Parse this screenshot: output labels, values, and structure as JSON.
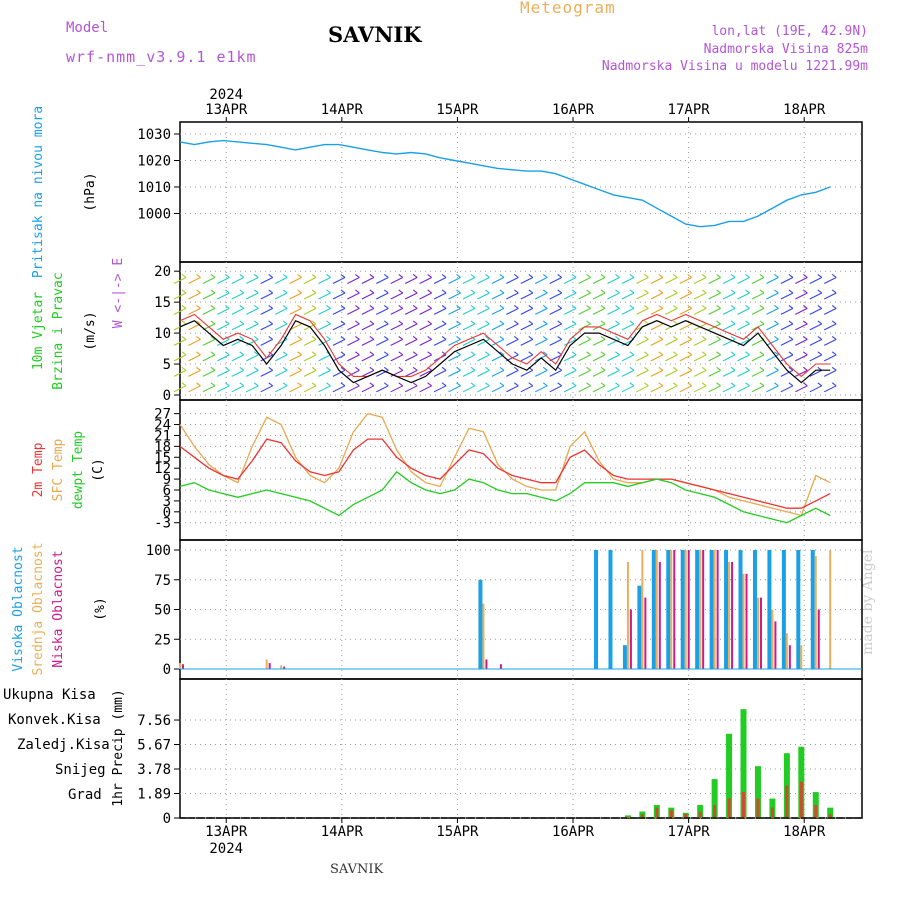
{
  "header": {
    "model_label": "Model",
    "model_name": "wrf-nmm_v3.9.1 e1km",
    "title": "Meteogram",
    "station": "SAVNIK",
    "lonlat": "lon,lat (19E, 42.9N)",
    "elevation": "Nadmorska Visina 825m",
    "model_elevation": "Nadmorska Visina u modelu 1221.99m",
    "footer_station": "SAVNIK",
    "credit": "made by Angel"
  },
  "time_axis": {
    "year": "2024",
    "labels": [
      "13APR",
      "14APR",
      "15APR",
      "16APR",
      "17APR",
      "18APR"
    ]
  },
  "colors": {
    "pressure": "#1aa0e6",
    "temp2m": "#ee3333",
    "sfc": "#e8a850",
    "dewpt": "#22cc22",
    "high": "#1aa0e6",
    "mid": "#e8b05a",
    "low": "#cc1a8c",
    "total": "#22cc22",
    "conv": "#ee3333",
    "frz": "#ff7733",
    "snow": "#3333dd",
    "hail": "#22cccc",
    "purple": "#b455d6"
  },
  "chart_data": [
    {
      "type": "line",
      "panel": "pressure",
      "ylabel_main": "Pritisak na nivou mora",
      "ylabel_unit": "(hPa)",
      "yticks": [
        "1030",
        "1020",
        "1010",
        "1000"
      ],
      "ylim": [
        993,
        1030
      ],
      "x_start_day": 12.6,
      "x_step_hours": 3,
      "series": [
        {
          "name": "pressure",
          "values": [
            1027,
            1026,
            1027,
            1027.5,
            1027,
            1026.5,
            1026,
            1025,
            1024,
            1025,
            1026,
            1026,
            1025,
            1024,
            1023,
            1022.5,
            1023,
            1022.5,
            1021,
            1020,
            1019,
            1018,
            1017,
            1016.5,
            1016,
            1016,
            1015,
            1013,
            1011,
            1009,
            1007,
            1006,
            1005,
            1002,
            999,
            996,
            995,
            995.5,
            997,
            997,
            999,
            1002,
            1005,
            1007,
            1008,
            1010
          ]
        }
      ]
    },
    {
      "type": "line",
      "panel": "wind",
      "ylabel_main": "10m Vjetar",
      "ylabel_sub": "Brzina i Pravac",
      "ylabel_unit": "(m/s)",
      "compass": "W <-|-> E",
      "yticks": [
        "20",
        "15",
        "10",
        "5",
        "0"
      ],
      "ylim": [
        0,
        21
      ],
      "x_start_day": 12.6,
      "x_step_hours": 3,
      "series": [
        {
          "name": "speed",
          "values": [
            11,
            12,
            10,
            8,
            9,
            8,
            5,
            8,
            12,
            11,
            8,
            4,
            2,
            3,
            4,
            3,
            2,
            3,
            5,
            7,
            8,
            9,
            7,
            5,
            4,
            6,
            4,
            8,
            10,
            10,
            9,
            8,
            11,
            12,
            11,
            12,
            11,
            10,
            9,
            8,
            10,
            7,
            4,
            2,
            4,
            4
          ]
        },
        {
          "name": "gust",
          "values": [
            12,
            13,
            11,
            9,
            10,
            9,
            6,
            9,
            13,
            12,
            9,
            5,
            3,
            3,
            4,
            3,
            3,
            4,
            6,
            8,
            9,
            10,
            8,
            6,
            5,
            7,
            5,
            9,
            11,
            11,
            10,
            9,
            12,
            13,
            12,
            13,
            12,
            11,
            10,
            9,
            11,
            8,
            5,
            3,
            5,
            5
          ]
        }
      ]
    },
    {
      "type": "line",
      "panel": "temperature",
      "ylabel_main": "2m Temp",
      "ylabel_sub": "SFC Temp",
      "ylabel_sub2": "dewpt Temp",
      "ylabel_unit": "(C)",
      "yticks": [
        "27",
        "24",
        "21",
        "18",
        "15",
        "12",
        "9",
        "6",
        "3",
        "0",
        "-3"
      ],
      "ylim": [
        -5,
        28
      ],
      "x_start_day": 12.6,
      "x_step_hours": 3,
      "series": [
        {
          "name": "2m",
          "values": [
            18,
            15,
            12,
            10,
            9,
            14,
            20,
            19,
            14,
            11,
            10,
            11,
            17,
            20,
            20,
            15,
            12,
            10,
            9,
            13,
            17,
            16,
            12,
            10,
            9,
            8,
            8,
            15,
            17,
            13,
            10,
            9,
            9,
            9,
            9,
            8,
            7,
            6,
            5,
            4,
            3,
            2,
            1,
            1,
            3,
            5
          ]
        },
        {
          "name": "sfc",
          "values": [
            24,
            18,
            13,
            10,
            8,
            18,
            26,
            24,
            15,
            10,
            8,
            12,
            22,
            27,
            26,
            17,
            11,
            8,
            7,
            15,
            23,
            22,
            13,
            9,
            7,
            6,
            6,
            18,
            22,
            14,
            9,
            8,
            8,
            9,
            9,
            8,
            7,
            6,
            4,
            3,
            2,
            1,
            0,
            -1,
            10,
            8
          ]
        },
        {
          "name": "dewpt",
          "values": [
            7,
            8,
            6,
            5,
            4,
            5,
            6,
            5,
            4,
            3,
            1,
            -1,
            2,
            4,
            6,
            11,
            8,
            6,
            5,
            6,
            9,
            8,
            6,
            5,
            5,
            4,
            3,
            5,
            8,
            8,
            8,
            7,
            8,
            9,
            8,
            6,
            5,
            4,
            2,
            0,
            -1,
            -2,
            -3,
            -1,
            1,
            -1
          ]
        }
      ]
    },
    {
      "type": "bar",
      "panel": "clouds",
      "ylabel_main": "Visoka Oblacnost",
      "ylabel_sub": "Srednja Oblacnost",
      "ylabel_sub2": "Niska Oblacnost",
      "ylabel_unit": "(%)",
      "yticks": [
        "100",
        "75",
        "50",
        "25",
        "0"
      ],
      "ylim": [
        0,
        100
      ],
      "x_start_day": 12.6,
      "x_step_hours": 3,
      "series": [
        {
          "name": "high",
          "values": [
            0,
            0,
            0,
            0,
            0,
            0,
            0,
            0,
            0,
            0,
            0,
            0,
            0,
            0,
            0,
            0,
            0,
            0,
            0,
            0,
            0,
            75,
            0,
            0,
            0,
            0,
            0,
            0,
            0,
            100,
            100,
            20,
            70,
            100,
            100,
            100,
            100,
            100,
            100,
            100,
            100,
            100,
            100,
            100,
            100,
            0
          ]
        },
        {
          "name": "mid",
          "values": [
            5,
            0,
            0,
            0,
            0,
            0,
            8,
            3,
            0,
            0,
            0,
            0,
            0,
            0,
            0,
            0,
            0,
            0,
            0,
            0,
            0,
            55,
            0,
            0,
            0,
            0,
            0,
            0,
            0,
            0,
            0,
            90,
            100,
            100,
            100,
            100,
            100,
            100,
            90,
            80,
            60,
            50,
            30,
            20,
            95,
            100
          ]
        },
        {
          "name": "low",
          "values": [
            4,
            0,
            0,
            0,
            0,
            0,
            5,
            2,
            0,
            0,
            0,
            0,
            0,
            0,
            0,
            0,
            0,
            0,
            0,
            0,
            0,
            8,
            4,
            0,
            0,
            0,
            0,
            0,
            0,
            0,
            0,
            50,
            60,
            90,
            100,
            100,
            100,
            100,
            90,
            80,
            60,
            40,
            20,
            0,
            50,
            0
          ]
        }
      ]
    },
    {
      "type": "bar",
      "panel": "precipitation",
      "legend": [
        "Ukupna Kisa",
        "Konvek.Kisa",
        "Zaledj.Kisa",
        "Snijeg",
        "Grad"
      ],
      "ylabel_main": "1hr Precip",
      "ylabel_unit": "(mm)",
      "yticks": [
        "7.56",
        "5.67",
        "3.78",
        "1.89",
        "0"
      ],
      "ylim": [
        0,
        9.8
      ],
      "x_start_day": 12.6,
      "x_step_hours": 3,
      "series": [
        {
          "name": "total",
          "values": [
            0,
            0,
            0,
            0,
            0,
            0,
            0,
            0,
            0,
            0,
            0,
            0,
            0,
            0,
            0,
            0,
            0,
            0,
            0,
            0,
            0,
            0,
            0,
            0,
            0,
            0,
            0,
            0,
            0,
            0,
            0,
            0.2,
            0.5,
            1.0,
            0.8,
            0.4,
            1.0,
            3.0,
            6.5,
            8.4,
            4.0,
            1.5,
            5.0,
            5.5,
            2.0,
            0.8
          ]
        },
        {
          "name": "conv",
          "values": [
            0,
            0,
            0,
            0,
            0,
            0,
            0,
            0,
            0,
            0,
            0,
            0,
            0,
            0,
            0,
            0,
            0,
            0,
            0,
            0,
            0,
            0,
            0,
            0,
            0,
            0,
            0,
            0,
            0,
            0,
            0,
            0.1,
            0.3,
            0.8,
            0.6,
            0.3,
            0.5,
            1.0,
            1.5,
            2.0,
            1.5,
            0.8,
            2.5,
            2.8,
            1.0,
            0.3
          ]
        }
      ]
    }
  ]
}
